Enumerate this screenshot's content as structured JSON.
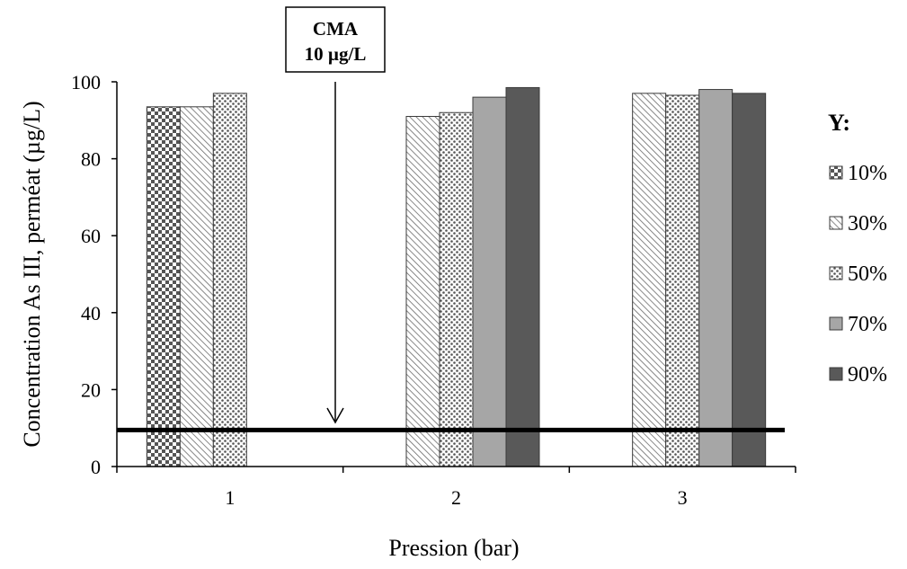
{
  "chart_data": {
    "type": "bar",
    "categories": [
      "1",
      "2",
      "3"
    ],
    "series": [
      {
        "name": "10%",
        "pattern": "checker",
        "values": [
          93.5,
          null,
          null
        ]
      },
      {
        "name": "30%",
        "pattern": "diagonal",
        "values": [
          93.5,
          91,
          97
        ]
      },
      {
        "name": "50%",
        "pattern": "dots",
        "values": [
          97,
          92,
          96.5
        ]
      },
      {
        "name": "70%",
        "pattern": "solid-light",
        "color": "#a6a6a6",
        "values": [
          null,
          96,
          98
        ]
      },
      {
        "name": "90%",
        "pattern": "solid-dark",
        "color": "#595959",
        "values": [
          null,
          98.5,
          97
        ]
      }
    ],
    "xlabel": "Pression (bar)",
    "ylabel": "Concentration As III, perméat (µg/L)",
    "ylim": [
      0,
      100
    ],
    "yticks": [
      0,
      20,
      40,
      60,
      80,
      100
    ],
    "legend_title": "Y:",
    "legend_position": "right",
    "reference_line": {
      "value": 9.5
    },
    "annotation": {
      "line1": "CMA",
      "line2": "10 µg/L"
    },
    "grid": false
  }
}
